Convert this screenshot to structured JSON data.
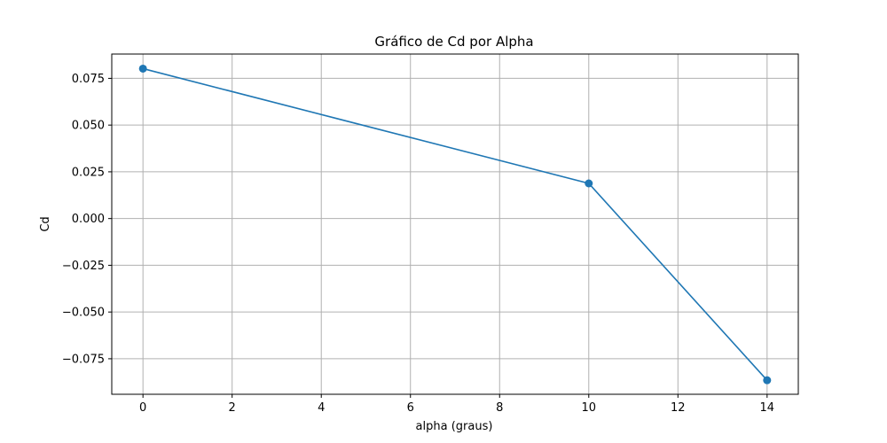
{
  "chart_data": {
    "type": "line",
    "title": "Gráfico de Cd por Alpha",
    "xlabel": "alpha (graus)",
    "ylabel": "Cd",
    "x": [
      0,
      10,
      14
    ],
    "series": [
      {
        "values": [
          0.0802,
          0.0188,
          -0.0865
        ],
        "color": "#1f77b4",
        "marker": "circle"
      }
    ],
    "xlim": [
      -0.7,
      14.7
    ],
    "ylim": [
      -0.094,
      0.088
    ],
    "xticks": [
      0,
      2,
      4,
      6,
      8,
      10,
      12,
      14
    ],
    "yticks": [
      -0.075,
      -0.05,
      -0.025,
      0.0,
      0.025,
      0.05,
      0.075
    ],
    "xtick_labels": [
      "0",
      "2",
      "4",
      "6",
      "8",
      "10",
      "12",
      "14"
    ],
    "ytick_labels": [
      "−0.075",
      "−0.050",
      "−0.025",
      "0.000",
      "0.025",
      "0.050",
      "0.075"
    ],
    "grid": true,
    "grid_color": "#b0b0b0",
    "axis_color": "#000000"
  }
}
